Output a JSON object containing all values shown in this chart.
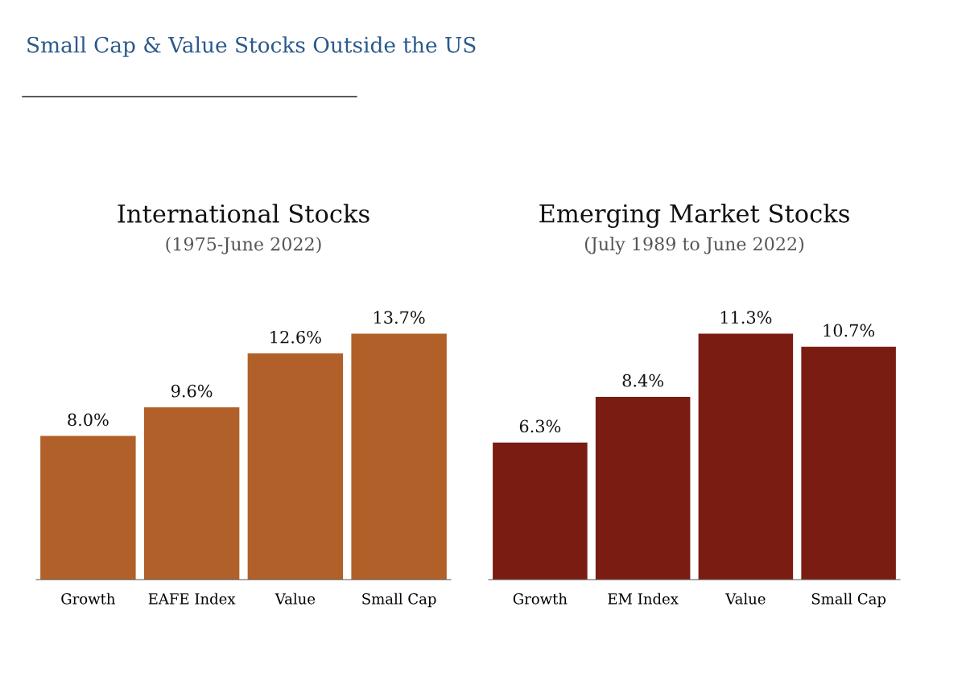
{
  "chart_data": [
    {
      "type": "bar",
      "title": "International Stocks",
      "subtitle": "(1975-June 2022)",
      "annotations": [
        "Small Cap & Value Stocks Outside the US"
      ],
      "categories": [
        "Growth",
        "EAFE Index",
        "Value",
        "Small Cap"
      ],
      "values": [
        8.0,
        9.6,
        12.6,
        13.7
      ],
      "color": "#b06028",
      "value_labels": [
        "8.0%",
        "9.6%",
        "12.6%",
        "13.7%"
      ],
      "grid": false,
      "legend": false
    },
    {
      "type": "bar",
      "title": "Emerging Market Stocks",
      "subtitle": "(July 1989 to June 2022)",
      "categories": [
        "Growth",
        "EM Index",
        "Value",
        "Small Cap"
      ],
      "values": [
        6.3,
        8.4,
        11.3,
        10.7
      ],
      "color": "#7a1c12",
      "value_labels": [
        "6.3%",
        "8.4%",
        "11.3%",
        "10.7%"
      ],
      "grid": false,
      "legend": false
    }
  ]
}
